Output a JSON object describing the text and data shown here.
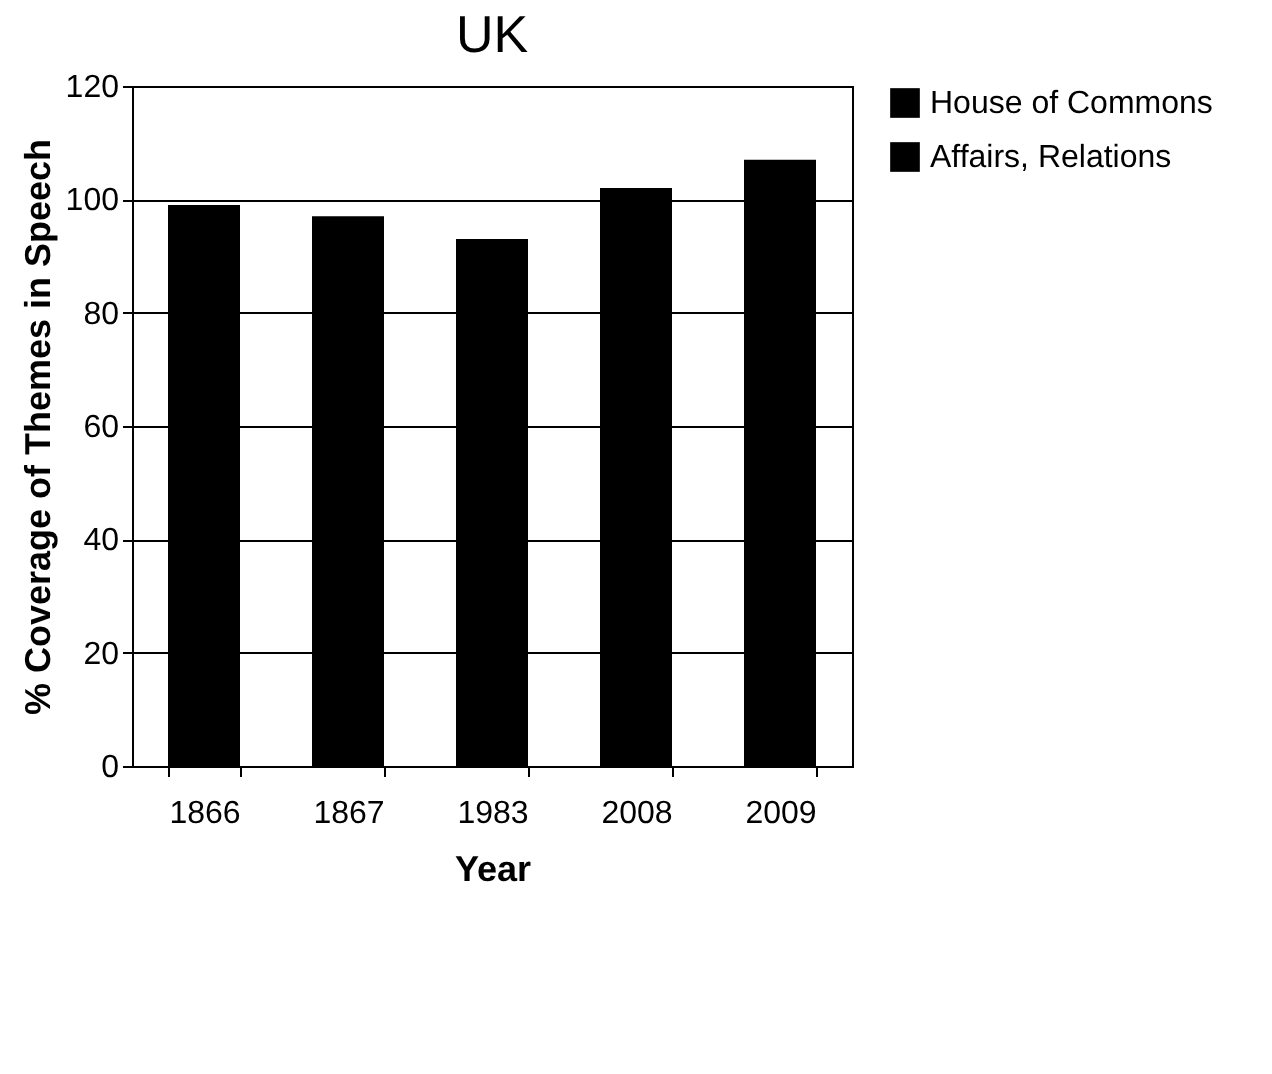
{
  "chart_data": {
    "type": "bar",
    "title": "UK",
    "xlabel": "Year",
    "ylabel": "% Coverage of Themes in Speech",
    "categories": [
      "1866",
      "1867",
      "1983",
      "2008",
      "2009"
    ],
    "series": [
      {
        "name": "House of Commons",
        "color": "#000000",
        "values": [
          99,
          97,
          93,
          102,
          107
        ]
      },
      {
        "name": "Affairs, Relations",
        "color": "#000000",
        "values": [
          null,
          null,
          null,
          null,
          null
        ]
      }
    ],
    "ylim": [
      0,
      120
    ],
    "yticks": [
      0,
      20,
      40,
      60,
      80,
      100,
      120
    ],
    "grid": "y",
    "legend": "right"
  }
}
